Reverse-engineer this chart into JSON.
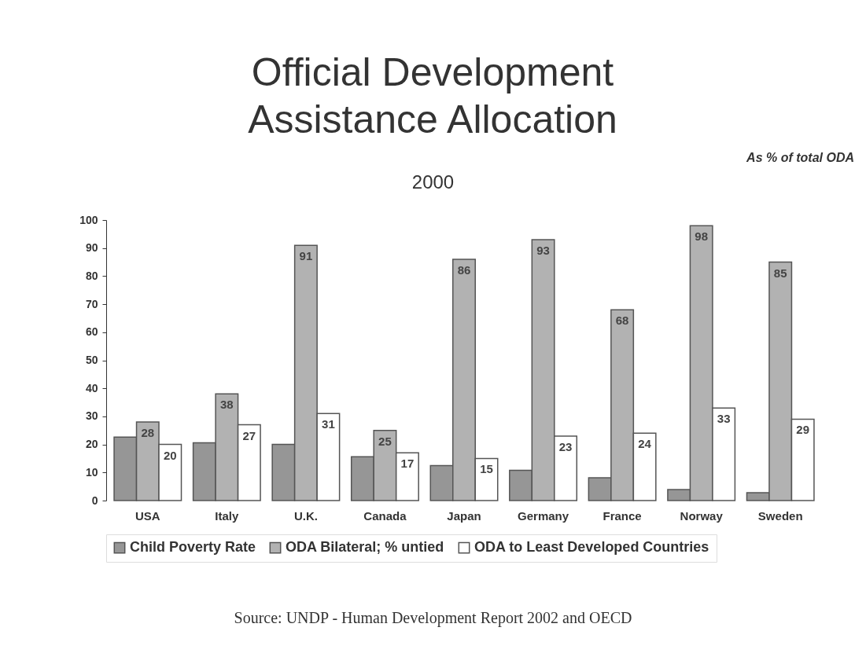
{
  "chart_data": {
    "type": "bar",
    "title": "Official Development Assistance Allocation",
    "subtitle": "2000",
    "annotations": [
      "As % of total ODA",
      "Source: UNDP - Human Development Report 2002 and OECD"
    ],
    "categories": [
      "USA",
      "Italy",
      "U.K.",
      "Canada",
      "Japan",
      "Germany",
      "France",
      "Norway",
      "Sweden"
    ],
    "series": [
      {
        "name": "Child Poverty Rate",
        "color": "#969696",
        "values": [
          22.6,
          20.6,
          20.0,
          15.6,
          12.5,
          10.8,
          8.1,
          3.9,
          2.8
        ]
      },
      {
        "name": "ODA Bilateral; % untied",
        "color": "#b2b2b2",
        "values": [
          28,
          38,
          91,
          25,
          86,
          93,
          68,
          98,
          85
        ],
        "value_labels": [
          "28",
          "38",
          "91",
          "25",
          "86",
          "93",
          "68",
          "98",
          "85"
        ]
      },
      {
        "name": "ODA to Least Developed Countries",
        "color": "#ffffff",
        "values": [
          20,
          27,
          31,
          17,
          15,
          23,
          24,
          33,
          29
        ],
        "value_labels": [
          "20",
          "27",
          "31",
          "17",
          "15",
          "23",
          "24",
          "33",
          "29"
        ]
      }
    ],
    "ylim": [
      0,
      100
    ],
    "yticks": [
      0,
      10,
      20,
      30,
      40,
      50,
      60,
      70,
      80,
      90,
      100
    ],
    "grid": false,
    "legend": "bottom"
  }
}
